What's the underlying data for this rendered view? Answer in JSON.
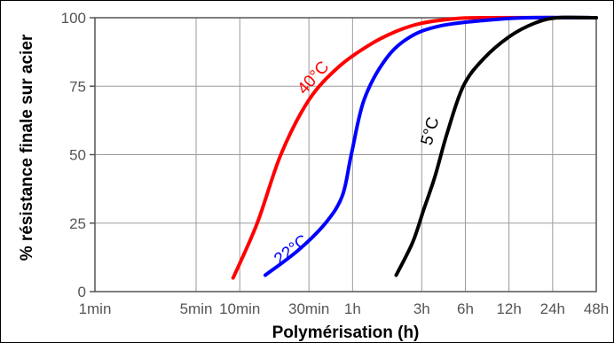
{
  "chart_data": {
    "type": "line",
    "title": "",
    "xlabel": "Polymérisation (h)",
    "ylabel": "% résistance finale sur acier",
    "x_scale": "log",
    "x_ticks": [
      {
        "label": "1min",
        "hours": 0.0167
      },
      {
        "label": "5min",
        "hours": 0.0833
      },
      {
        "label": "10min",
        "hours": 0.1667
      },
      {
        "label": "30min",
        "hours": 0.5
      },
      {
        "label": "1h",
        "hours": 1
      },
      {
        "label": "3h",
        "hours": 3
      },
      {
        "label": "6h",
        "hours": 6
      },
      {
        "label": "12h",
        "hours": 12
      },
      {
        "label": "24h",
        "hours": 24
      },
      {
        "label": "48h",
        "hours": 48
      }
    ],
    "y_ticks": [
      0,
      25,
      50,
      75,
      100
    ],
    "ylim": [
      0,
      100
    ],
    "grid": true,
    "series": [
      {
        "name": "40°C",
        "color": "#ff0000",
        "points": [
          [
            0.15,
            5
          ],
          [
            0.22,
            25
          ],
          [
            0.32,
            50
          ],
          [
            0.5,
            70
          ],
          [
            0.8,
            82
          ],
          [
            1.3,
            90
          ],
          [
            2,
            95
          ],
          [
            3,
            98
          ],
          [
            5,
            99.6
          ],
          [
            8,
            100
          ],
          [
            48,
            100
          ]
        ]
      },
      {
        "name": "22°C",
        "color": "#0000ff",
        "points": [
          [
            0.25,
            6
          ],
          [
            0.42,
            15
          ],
          [
            0.65,
            25
          ],
          [
            0.85,
            35
          ],
          [
            0.98,
            50
          ],
          [
            1.2,
            70
          ],
          [
            1.7,
            85
          ],
          [
            2.5,
            93
          ],
          [
            4,
            97
          ],
          [
            8,
            99
          ],
          [
            16,
            100
          ],
          [
            48,
            100
          ]
        ]
      },
      {
        "name": "5°C",
        "color": "#000000",
        "points": [
          [
            2,
            6
          ],
          [
            2.6,
            18
          ],
          [
            3.1,
            30
          ],
          [
            3.7,
            42
          ],
          [
            4.5,
            58
          ],
          [
            5.8,
            75
          ],
          [
            8,
            85
          ],
          [
            12,
            93
          ],
          [
            18,
            98
          ],
          [
            26,
            100
          ],
          [
            48,
            100
          ]
        ]
      }
    ]
  }
}
